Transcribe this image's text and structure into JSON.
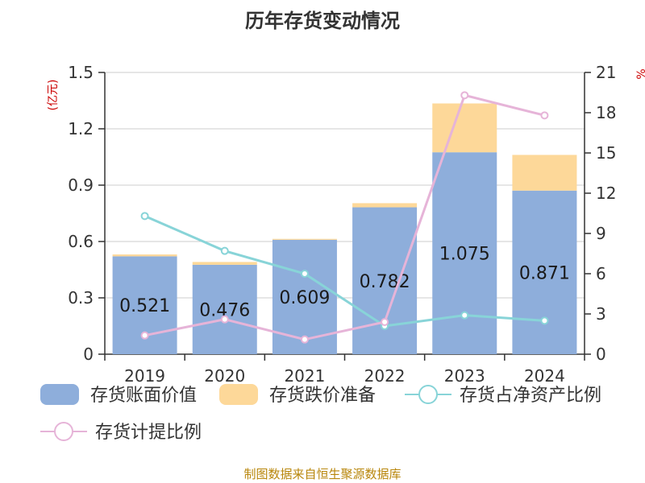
{
  "chart_data": {
    "type": "bar",
    "title": "历年存货变动情况",
    "y_left_unit": "(亿元)",
    "y_right_unit": "%",
    "categories": [
      "2019",
      "2020",
      "2021",
      "2022",
      "2023",
      "2024"
    ],
    "y_left_ticks": [
      "0",
      "0.3",
      "0.6",
      "0.9",
      "1.2",
      "1.5"
    ],
    "y_right_ticks": [
      "0",
      "3",
      "6",
      "9",
      "12",
      "15",
      "18",
      "21"
    ],
    "ylim_left": [
      0,
      1.5
    ],
    "ylim_right": [
      0,
      21
    ],
    "series": [
      {
        "name": "存货账面价值",
        "kind": "bar",
        "axis": "left",
        "color": "#8eaedb",
        "values": [
          0.521,
          0.476,
          0.609,
          0.782,
          1.075,
          0.871
        ],
        "labels": [
          "0.521",
          "0.476",
          "0.609",
          "0.782",
          "1.075",
          "0.871"
        ]
      },
      {
        "name": "存货跌价准备",
        "kind": "bar-stacked",
        "axis": "left",
        "color": "#fdd899",
        "values": [
          0.01,
          0.015,
          0.005,
          0.022,
          0.26,
          0.19
        ]
      },
      {
        "name": "存货占净资产比例",
        "kind": "line",
        "axis": "right",
        "color": "#88d4d8",
        "values": [
          10.3,
          7.7,
          6.0,
          2.1,
          2.9,
          2.5
        ]
      },
      {
        "name": "存货计提比例",
        "kind": "line",
        "axis": "right",
        "color": "#e6b4d8",
        "values": [
          1.4,
          2.6,
          1.1,
          2.4,
          19.3,
          17.8
        ]
      }
    ],
    "legend_position": "bottom",
    "grid": true
  },
  "footer": {
    "source": "制图数据来自恒生聚源数据库"
  }
}
